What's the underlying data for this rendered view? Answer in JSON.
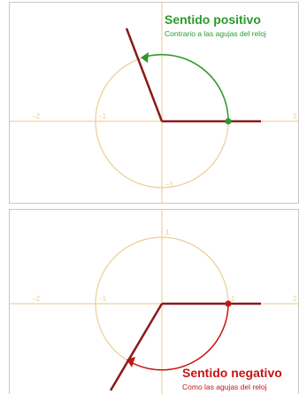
{
  "positive": {
    "title": "Sentido positivo",
    "subtitle": "Contrario a las agujas del reloj",
    "accent_color": "#2a9a2a",
    "ticks": {
      "neg2": "−2",
      "neg1": "−1",
      "pos2": "2",
      "neg1_y": "−1"
    }
  },
  "negative": {
    "title": "Sentido negativo",
    "subtitle": "Como las agujas del reloj",
    "accent_color": "#c81414",
    "ticks": {
      "neg2": "−2",
      "neg1": "−1",
      "pos1": "1",
      "pos2": "2",
      "pos1_y": "1"
    }
  },
  "colors": {
    "axis": "#f2dcae",
    "circle": "#eccd94",
    "ray": "#8b1a1a"
  }
}
